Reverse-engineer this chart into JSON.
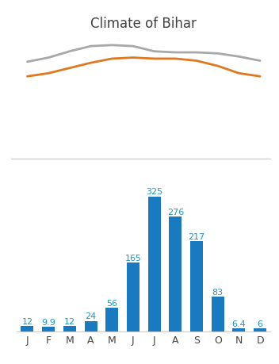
{
  "title": "Climate of Bihar",
  "months": [
    "J",
    "F",
    "M",
    "A",
    "M",
    "J",
    "J",
    "A",
    "S",
    "O",
    "N",
    "D"
  ],
  "temp_high": [
    23,
    27,
    33,
    38,
    39,
    38,
    33,
    32,
    32,
    31,
    28,
    24
  ],
  "temp_low": [
    9,
    12,
    17,
    22,
    26,
    27,
    26,
    26,
    24,
    19,
    12,
    9
  ],
  "precipitation": [
    12,
    9.9,
    12,
    24,
    56,
    165,
    325,
    276,
    217,
    83,
    6.4,
    6
  ],
  "precip_labels": [
    "12",
    "9.9",
    "12",
    "24",
    "56",
    "165",
    "325",
    "276",
    "217",
    "83",
    "6.4",
    "6"
  ],
  "bar_color": "#1a7abf",
  "line_color_high": "#a8a8a8",
  "line_color_low": "#e07820",
  "title_fontsize": 12,
  "bar_label_fontsize": 8,
  "tick_fontsize": 9,
  "bar_label_color": "#2196c0",
  "separator_color": "#cccccc",
  "temp_ylim_min": -60,
  "temp_ylim_max": 55,
  "precip_ylim_max": 390
}
